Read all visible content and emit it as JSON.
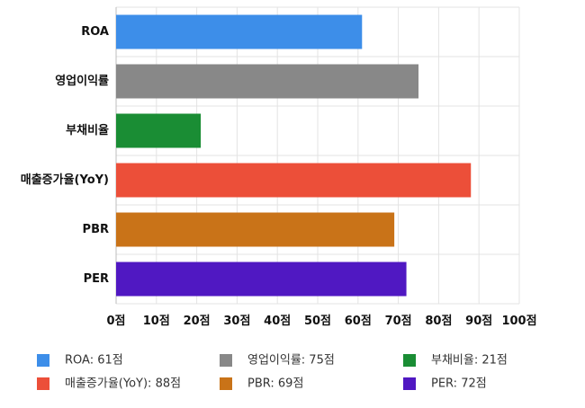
{
  "chart_data": {
    "type": "bar",
    "orientation": "horizontal",
    "categories": [
      "ROA",
      "영업이익률",
      "부채비율",
      "매출증가율(YoY)",
      "PBR",
      "PER"
    ],
    "values": [
      61,
      75,
      21,
      88,
      69,
      72
    ],
    "colors": [
      "#3d8ee9",
      "#888888",
      "#1a8d34",
      "#ec4f39",
      "#c97318",
      "#5018c2"
    ],
    "xlim": [
      0,
      100
    ],
    "xticks": [
      "0점",
      "10점",
      "20점",
      "30점",
      "40점",
      "50점",
      "60점",
      "70점",
      "80점",
      "90점",
      "100점"
    ],
    "grid": true,
    "legend_position": "bottom",
    "legend": [
      "ROA: 61점",
      "영업이익률: 75점",
      "부채비율: 21점",
      "매출증가율(YoY): 88점",
      "PBR: 69점",
      "PER: 72점"
    ]
  }
}
